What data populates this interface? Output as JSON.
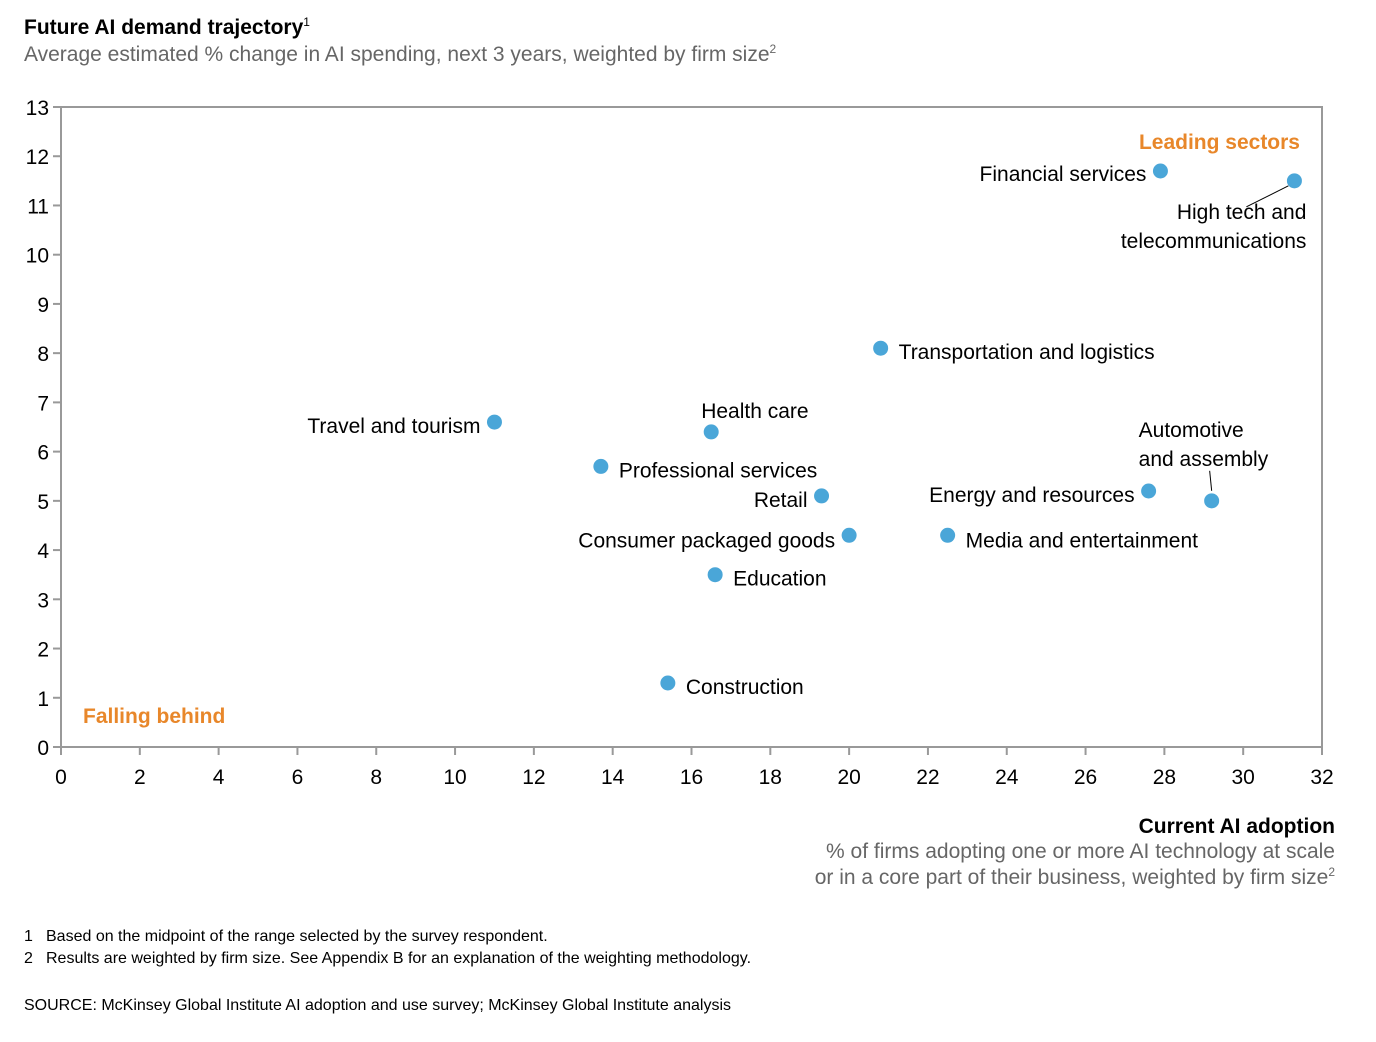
{
  "y_title": "Future AI demand trajectory",
  "y_title_sup": "1",
  "y_subtitle": "Average estimated % change in AI spending, next 3 years, weighted by firm size",
  "y_subtitle_sup": "2",
  "x_title": "Current AI adoption",
  "x_subtitle_line1": "% of firms adopting one or more AI technology at scale",
  "x_subtitle_line2": "or in a core part of their business, weighted by firm size",
  "x_subtitle_sup": "2",
  "footnotes": [
    {
      "num": "1",
      "text": "Based on the midpoint of the range selected by the survey respondent."
    },
    {
      "num": "2",
      "text": "Results are weighted by firm size. See Appendix B for an explanation of the weighting methodology."
    }
  ],
  "source": "SOURCE:  McKinsey Global Institute AI adoption and use survey; McKinsey Global Institute analysis",
  "colors": {
    "point": "#4aa6d8",
    "region_label": "#e8872a",
    "axis": "#999999"
  },
  "chart_data": {
    "type": "scatter",
    "xlim": [
      0,
      32
    ],
    "ylim": [
      0,
      13
    ],
    "x_ticks": [
      0,
      2,
      4,
      6,
      8,
      10,
      12,
      14,
      16,
      18,
      20,
      22,
      24,
      26,
      28,
      30,
      32
    ],
    "y_ticks": [
      0,
      1,
      2,
      3,
      4,
      5,
      6,
      7,
      8,
      9,
      10,
      11,
      12,
      13
    ],
    "grid": false,
    "points": [
      {
        "label": "Financial services",
        "x": 27.9,
        "y": 11.7
      },
      {
        "label": "High tech and telecommunications",
        "x": 31.3,
        "y": 11.5
      },
      {
        "label": "Transportation and logistics",
        "x": 20.8,
        "y": 8.1
      },
      {
        "label": "Travel and tourism",
        "x": 11.0,
        "y": 6.6
      },
      {
        "label": "Health care",
        "x": 16.5,
        "y": 6.4
      },
      {
        "label": "Professional services",
        "x": 13.7,
        "y": 5.7
      },
      {
        "label": "Retail",
        "x": 19.3,
        "y": 5.1
      },
      {
        "label": "Energy and resources",
        "x": 27.6,
        "y": 5.2
      },
      {
        "label": "Automotive and assembly",
        "x": 29.2,
        "y": 5.0
      },
      {
        "label": "Consumer packaged goods",
        "x": 20.0,
        "y": 4.3
      },
      {
        "label": "Media and entertainment",
        "x": 22.5,
        "y": 4.3
      },
      {
        "label": "Education",
        "x": 16.6,
        "y": 3.5
      },
      {
        "label": "Construction",
        "x": 15.4,
        "y": 1.3
      }
    ],
    "region_labels": [
      "Leading sectors",
      "Falling behind"
    ]
  }
}
